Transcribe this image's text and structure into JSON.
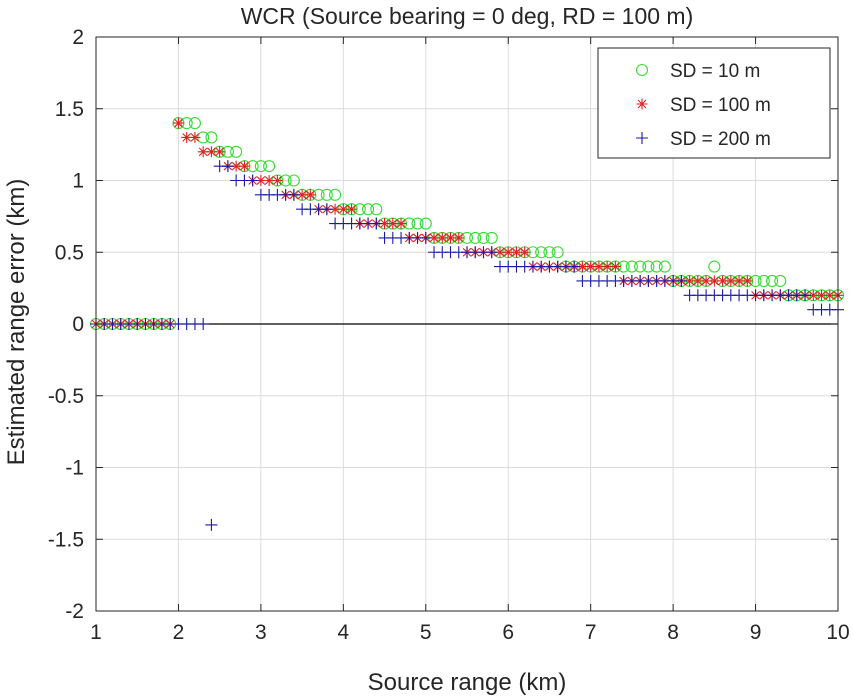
{
  "chart_data": {
    "type": "scatter",
    "title": "WCR (Source bearing = 0 deg, RD = 100 m)",
    "xlabel": "Source range (km)",
    "ylabel": "Estimated range error (km)",
    "xlim": [
      1,
      10
    ],
    "ylim": [
      -2,
      2
    ],
    "xticks": [
      "1",
      "2",
      "3",
      "4",
      "5",
      "6",
      "7",
      "8",
      "9",
      "10"
    ],
    "yticks": [
      "-2",
      "-1.5",
      "-1",
      "-0.5",
      "0",
      "0.5",
      "1",
      "1.5",
      "2"
    ],
    "grid": true,
    "zero_line": true,
    "legend_position": "top-right",
    "series": [
      {
        "name": "SD = 10 m",
        "marker": "circle",
        "color": "#33dd33",
        "x": [
          1.0,
          1.1,
          1.2,
          1.3,
          1.4,
          1.5,
          1.6,
          1.7,
          1.8,
          1.9,
          2.0,
          2.1,
          2.2,
          2.3,
          2.4,
          2.5,
          2.6,
          2.7,
          2.8,
          2.9,
          3.0,
          3.1,
          3.2,
          3.3,
          3.4,
          3.5,
          3.6,
          3.7,
          3.8,
          3.9,
          4.0,
          4.1,
          4.2,
          4.3,
          4.4,
          4.5,
          4.6,
          4.7,
          4.8,
          4.9,
          5.0,
          5.1,
          5.2,
          5.3,
          5.4,
          5.5,
          5.6,
          5.7,
          5.8,
          5.9,
          6.0,
          6.1,
          6.2,
          6.3,
          6.4,
          6.5,
          6.6,
          6.7,
          6.8,
          6.9,
          7.0,
          7.1,
          7.2,
          7.3,
          7.4,
          7.5,
          7.6,
          7.7,
          7.8,
          7.9,
          8.0,
          8.1,
          8.2,
          8.3,
          8.4,
          8.5,
          8.6,
          8.7,
          8.8,
          8.9,
          9.0,
          9.1,
          9.2,
          9.3,
          9.4,
          9.5,
          9.6,
          9.7,
          9.8,
          9.9,
          10.0
        ],
        "y": [
          0,
          0,
          0,
          0,
          0,
          0,
          0,
          0,
          0,
          0,
          1.4,
          1.4,
          1.4,
          1.3,
          1.3,
          1.2,
          1.2,
          1.2,
          1.1,
          1.1,
          1.1,
          1.1,
          1.0,
          1.0,
          1.0,
          0.9,
          0.9,
          0.9,
          0.9,
          0.9,
          0.8,
          0.8,
          0.8,
          0.8,
          0.8,
          0.7,
          0.7,
          0.7,
          0.7,
          0.7,
          0.7,
          0.6,
          0.6,
          0.6,
          0.6,
          0.6,
          0.6,
          0.6,
          0.6,
          0.5,
          0.5,
          0.5,
          0.5,
          0.5,
          0.5,
          0.5,
          0.5,
          0.4,
          0.4,
          0.4,
          0.4,
          0.4,
          0.4,
          0.4,
          0.4,
          0.4,
          0.4,
          0.4,
          0.4,
          0.4,
          0.3,
          0.3,
          0.3,
          0.3,
          0.3,
          0.4,
          0.3,
          0.3,
          0.3,
          0.3,
          0.3,
          0.3,
          0.3,
          0.3,
          0.2,
          0.2,
          0.2,
          0.2,
          0.2,
          0.2,
          0.2
        ]
      },
      {
        "name": "SD = 100 m",
        "marker": "asterisk",
        "color": "#dd2222",
        "x": [
          1.0,
          1.1,
          1.2,
          1.3,
          1.4,
          1.5,
          1.6,
          1.7,
          1.8,
          1.9,
          2.0,
          2.1,
          2.2,
          2.3,
          2.4,
          2.5,
          2.6,
          2.7,
          2.8,
          2.9,
          3.0,
          3.1,
          3.2,
          3.3,
          3.4,
          3.5,
          3.6,
          3.7,
          3.8,
          3.9,
          4.0,
          4.1,
          4.2,
          4.3,
          4.4,
          4.5,
          4.6,
          4.7,
          4.8,
          4.9,
          5.0,
          5.1,
          5.2,
          5.3,
          5.4,
          5.5,
          5.6,
          5.7,
          5.8,
          5.9,
          6.0,
          6.1,
          6.2,
          6.3,
          6.4,
          6.5,
          6.6,
          6.7,
          6.8,
          6.9,
          7.0,
          7.1,
          7.2,
          7.3,
          7.4,
          7.5,
          7.6,
          7.7,
          7.8,
          7.9,
          8.0,
          8.1,
          8.2,
          8.3,
          8.4,
          8.5,
          8.6,
          8.7,
          8.8,
          8.9,
          9.0,
          9.1,
          9.2,
          9.3,
          9.4,
          9.5,
          9.6,
          9.7,
          9.8,
          9.9,
          10.0
        ],
        "y": [
          0,
          0,
          0,
          0,
          0,
          0,
          0,
          0,
          0,
          0,
          1.4,
          1.3,
          1.3,
          1.2,
          1.2,
          1.2,
          1.1,
          1.1,
          1.1,
          1.0,
          1.0,
          1.0,
          1.0,
          0.9,
          0.9,
          0.9,
          0.9,
          0.8,
          0.8,
          0.8,
          0.8,
          0.8,
          0.7,
          0.7,
          0.7,
          0.7,
          0.7,
          0.7,
          0.6,
          0.6,
          0.6,
          0.6,
          0.6,
          0.6,
          0.6,
          0.5,
          0.5,
          0.5,
          0.5,
          0.5,
          0.5,
          0.5,
          0.5,
          0.4,
          0.4,
          0.4,
          0.4,
          0.4,
          0.4,
          0.4,
          0.4,
          0.4,
          0.4,
          0.4,
          0.3,
          0.3,
          0.3,
          0.3,
          0.3,
          0.3,
          0.3,
          0.3,
          0.3,
          0.3,
          0.3,
          0.3,
          0.3,
          0.3,
          0.3,
          0.3,
          0.2,
          0.2,
          0.2,
          0.2,
          0.2,
          0.2,
          0.2,
          0.2,
          0.2,
          0.2,
          0.2
        ]
      },
      {
        "name": "SD = 200 m",
        "marker": "plus",
        "color": "#1a1aa6",
        "x": [
          1.0,
          1.1,
          1.2,
          1.3,
          1.4,
          1.5,
          1.6,
          1.7,
          1.8,
          1.9,
          2.0,
          2.1,
          2.2,
          2.3,
          2.4,
          2.5,
          2.6,
          2.7,
          2.8,
          2.9,
          3.0,
          3.1,
          3.2,
          3.3,
          3.4,
          3.5,
          3.6,
          3.7,
          3.8,
          3.9,
          4.0,
          4.1,
          4.2,
          4.3,
          4.4,
          4.5,
          4.6,
          4.7,
          4.8,
          4.9,
          5.0,
          5.1,
          5.2,
          5.3,
          5.4,
          5.5,
          5.6,
          5.7,
          5.8,
          5.9,
          6.0,
          6.1,
          6.2,
          6.3,
          6.4,
          6.5,
          6.6,
          6.7,
          6.8,
          6.9,
          7.0,
          7.1,
          7.2,
          7.3,
          7.4,
          7.5,
          7.6,
          7.7,
          7.8,
          7.9,
          8.0,
          8.1,
          8.2,
          8.3,
          8.4,
          8.5,
          8.6,
          8.7,
          8.8,
          8.9,
          9.0,
          9.1,
          9.2,
          9.3,
          9.4,
          9.5,
          9.6,
          9.7,
          9.8,
          9.9,
          10.0
        ],
        "y": [
          0,
          0,
          0,
          0,
          0,
          0,
          0,
          0,
          0,
          0,
          0,
          0,
          0,
          0,
          -1.4,
          1.1,
          1.1,
          1.0,
          1.0,
          1.0,
          0.9,
          0.9,
          0.9,
          0.9,
          0.9,
          0.8,
          0.8,
          0.8,
          0.8,
          0.7,
          0.7,
          0.7,
          0.7,
          0.7,
          0.7,
          0.6,
          0.6,
          0.6,
          0.6,
          0.6,
          0.6,
          0.5,
          0.5,
          0.5,
          0.5,
          0.5,
          0.5,
          0.5,
          0.5,
          0.4,
          0.4,
          0.4,
          0.4,
          0.4,
          0.4,
          0.4,
          0.4,
          0.4,
          0.4,
          0.3,
          0.3,
          0.3,
          0.3,
          0.3,
          0.3,
          0.3,
          0.3,
          0.3,
          0.3,
          0.3,
          0.3,
          0.3,
          0.2,
          0.2,
          0.2,
          0.2,
          0.2,
          0.2,
          0.2,
          0.2,
          0.2,
          0.2,
          0.2,
          0.2,
          0.2,
          0.2,
          0.2,
          0.1,
          0.1,
          0.1,
          0.1
        ]
      }
    ]
  }
}
